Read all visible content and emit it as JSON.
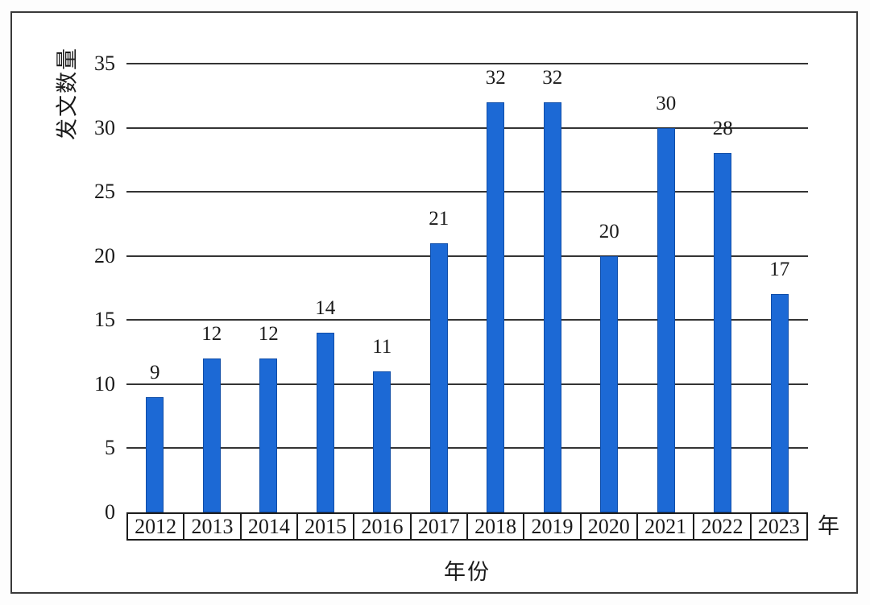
{
  "chart_data": {
    "type": "bar",
    "title": "",
    "categories": [
      "2012",
      "2013",
      "2014",
      "2015",
      "2016",
      "2017",
      "2018",
      "2019",
      "2020",
      "2021",
      "2022",
      "2023"
    ],
    "values": [
      9,
      12,
      12,
      14,
      11,
      21,
      32,
      32,
      20,
      30,
      28,
      17
    ],
    "ylabel": "发文数量",
    "xlabel": "年份",
    "x_unit": "年",
    "yticks": [
      0,
      5,
      10,
      15,
      20,
      25,
      30,
      35
    ],
    "ylim": [
      0,
      35
    ],
    "grid": true,
    "legend": "none",
    "bar_color": "#1c69d5",
    "bar_border_color": "#0f4da8",
    "gridline_color": "#343434"
  }
}
